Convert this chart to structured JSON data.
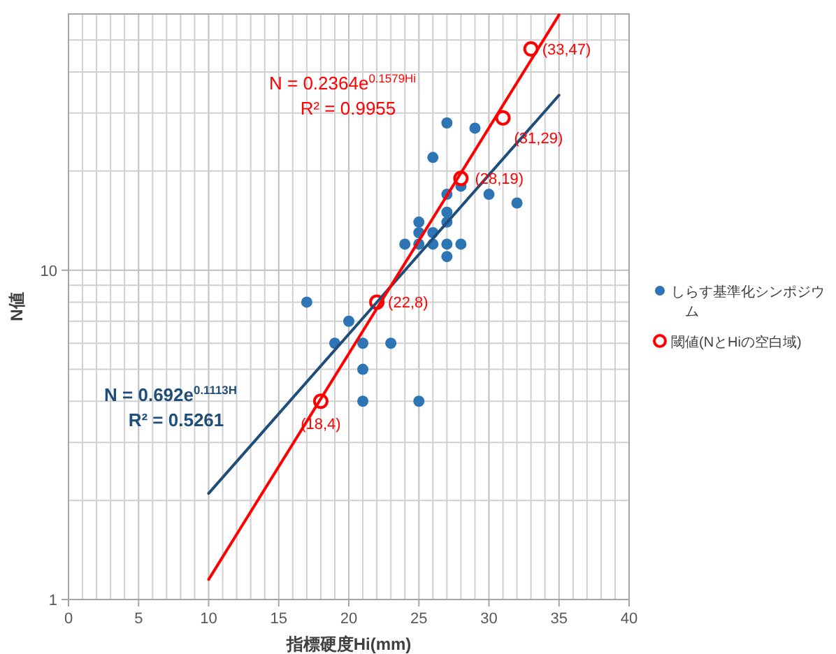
{
  "chart_data": {
    "type": "scatter",
    "xlabel": "指標硬度Hi(mm)",
    "ylabel": "N値",
    "xlim": [
      0,
      40
    ],
    "xticks": [
      0,
      5,
      10,
      15,
      20,
      25,
      30,
      35,
      40
    ],
    "ylim": [
      1,
      60
    ],
    "yticks": [
      1,
      10
    ],
    "log": "y",
    "grid": true,
    "legend": "right",
    "series": [
      {
        "name": "しらす基準化シンポジウム",
        "marker": "circle",
        "color": "#2e75b6",
        "x": [
          17,
          20,
          19,
          21,
          23,
          21,
          21,
          25,
          27,
          29,
          26,
          27,
          28,
          30,
          32,
          25,
          27,
          27,
          25,
          26,
          24,
          25,
          26,
          27,
          28,
          27
        ],
        "values": [
          8,
          7,
          6,
          6,
          6,
          5,
          4,
          4,
          28,
          27,
          22,
          17,
          18,
          17,
          16,
          14,
          15,
          14,
          13,
          13,
          12,
          12,
          12,
          12,
          12,
          11
        ]
      },
      {
        "name": "閾値(NとHiの空白域)",
        "marker": "circle",
        "color": "#ff0000",
        "x": [
          18,
          22,
          28,
          31,
          33
        ],
        "values": [
          4,
          8,
          19,
          29,
          47
        ]
      },
      {
        "type": "line",
        "color": "#1f4e79",
        "x": [
          10,
          35
        ],
        "values": [
          2.1,
          34
        ]
      },
      {
        "type": "line",
        "color": "#ff0000",
        "x": [
          10,
          35
        ],
        "values": [
          1.15,
          59.6
        ]
      }
    ],
    "annotations": [
      "N = 0.692e$^{0.1113H}$",
      "R² = 0.5261",
      "N = 0.2364e$^{0.1579Hi}$",
      "R² = 0.9955",
      {
        "text": "(18,4)",
        "x": 18,
        "y": 4
      },
      {
        "text": "(22,8)",
        "x": 22,
        "y": 8
      },
      {
        "text": "(28,19)",
        "x": 28,
        "y": 19
      },
      {
        "text": "(31,29)",
        "x": 31,
        "y": 29
      },
      {
        "text": "(33,47)",
        "x": 33,
        "y": 47
      }
    ]
  }
}
